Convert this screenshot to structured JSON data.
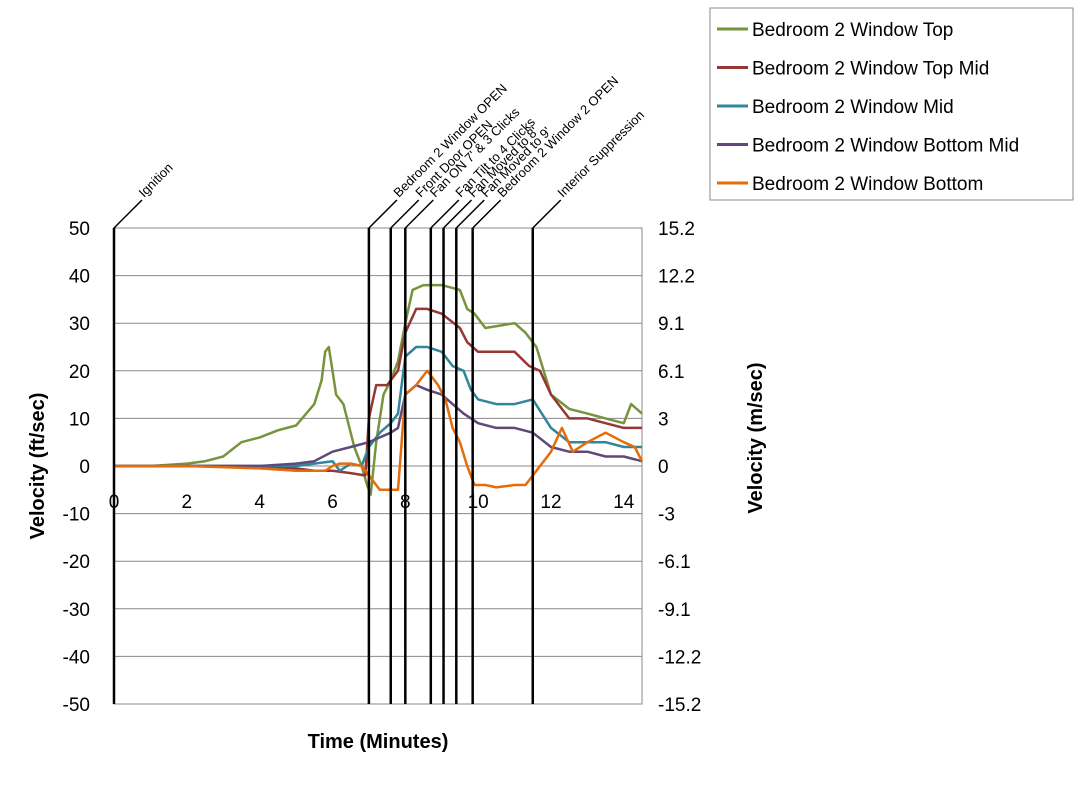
{
  "chart_data": {
    "type": "line",
    "xlabel": "Time (Minutes)",
    "ylabel": "Velocity (ft/sec)",
    "y2label": "Velocity (m/sec)",
    "xlim": [
      0,
      14.5
    ],
    "ylim": [
      -50,
      50
    ],
    "xticks": [
      0,
      2,
      4,
      6,
      8,
      10,
      12,
      14
    ],
    "yticks": [
      50,
      40,
      30,
      20,
      10,
      0,
      -10,
      -20,
      -30,
      -40,
      -50
    ],
    "y2ticks": [
      "15.2",
      "12.2",
      "9.1",
      "6.1",
      "3",
      "0",
      "-3",
      "-6.1",
      "-9.1",
      "-12.2",
      "-15.2"
    ],
    "grid": "horizontal",
    "legend_position": "top-right",
    "events": [
      {
        "time": 0,
        "label": "Ignition"
      },
      {
        "time": 7.0,
        "label": "Bedroom 2 Window OPEN"
      },
      {
        "time": 7.6,
        "label": "Front Door OPEN"
      },
      {
        "time": 8.0,
        "label": "Fan ON 7' & 3 Clicks"
      },
      {
        "time": 8.7,
        "label": "Fan Tilt to 4 Clicks"
      },
      {
        "time": 9.05,
        "label": "Fan Moved to 8'"
      },
      {
        "time": 9.4,
        "label": "Fan Moved to 9'"
      },
      {
        "time": 9.85,
        "label": "Bedroom 2 Window 2 OPEN"
      },
      {
        "time": 11.5,
        "label": "Interior Suppression"
      }
    ],
    "series": [
      {
        "name": "Bedroom 2 Window Top",
        "color": "#77933C",
        "x": [
          0,
          1,
          2,
          2.5,
          3,
          3.5,
          4,
          4.5,
          5,
          5.5,
          5.7,
          5.8,
          5.9,
          6.0,
          6.1,
          6.3,
          6.6,
          6.8,
          6.95,
          7.05,
          7.2,
          7.4,
          7.6,
          7.8,
          8.0,
          8.2,
          8.5,
          9.0,
          9.5,
          9.7,
          9.9,
          10.2,
          11.0,
          11.3,
          11.6,
          12.0,
          12.5,
          13.0,
          13.5,
          14.0,
          14.2,
          14.5
        ],
        "y": [
          0,
          0,
          0.5,
          1,
          2,
          5,
          6,
          7.5,
          8.5,
          13,
          18,
          24,
          25,
          20,
          15,
          13,
          4,
          0,
          -4,
          -6,
          5,
          15,
          18,
          22,
          30,
          37,
          38,
          38,
          37,
          33,
          32,
          29,
          30,
          28,
          25,
          15,
          12,
          11,
          10,
          9,
          13,
          11
        ]
      },
      {
        "name": "Bedroom 2 Window Top Mid",
        "color": "#953735",
        "x": [
          0,
          2,
          4,
          5,
          5.5,
          6,
          6.5,
          6.9,
          7.0,
          7.2,
          7.5,
          7.8,
          8.0,
          8.3,
          8.6,
          9.0,
          9.5,
          9.7,
          10.0,
          10.5,
          11.0,
          11.4,
          11.7,
          12.0,
          12.5,
          13.0,
          13.5,
          14.0,
          14.5
        ],
        "y": [
          0,
          0,
          0,
          -0.5,
          -1,
          -1,
          -1.5,
          -2,
          10,
          17,
          17,
          20,
          28,
          33,
          33,
          32,
          29,
          26,
          24,
          24,
          24,
          21,
          20,
          15,
          10,
          10,
          9,
          8,
          8
        ]
      },
      {
        "name": "Bedroom 2 Window Mid",
        "color": "#31859C",
        "x": [
          0,
          2,
          4,
          5,
          5.5,
          6,
          6.2,
          6.5,
          6.8,
          7.0,
          7.3,
          7.6,
          7.8,
          8.0,
          8.3,
          8.6,
          9.0,
          9.3,
          9.6,
          9.8,
          10.0,
          10.5,
          11.0,
          11.5,
          12.0,
          12.5,
          13.0,
          13.5,
          14.0,
          14.5
        ],
        "y": [
          0,
          0,
          0,
          0,
          0.5,
          1,
          -1,
          0.5,
          0,
          4,
          7,
          9,
          11,
          23,
          25,
          25,
          24,
          21,
          20,
          16,
          14,
          13,
          13,
          14,
          8,
          5,
          5,
          5,
          4,
          4
        ]
      },
      {
        "name": "Bedroom 2 Window Bottom Mid",
        "color": "#5F497A",
        "x": [
          0,
          2,
          4,
          5,
          5.5,
          6,
          6.5,
          7.0,
          7.3,
          7.6,
          7.8,
          8.0,
          8.3,
          8.6,
          9.0,
          9.3,
          9.6,
          10.0,
          10.5,
          11.0,
          11.5,
          12.0,
          12.5,
          13.0,
          13.5,
          14.0,
          14.5
        ],
        "y": [
          0,
          0,
          0,
          0.5,
          1,
          3,
          4,
          5,
          6,
          7,
          8,
          15,
          17,
          16,
          15,
          13,
          11,
          9,
          8,
          8,
          7,
          4,
          3,
          3,
          2,
          2,
          1
        ]
      },
      {
        "name": "Bedroom 2 Window Bottom",
        "color": "#E46C0A",
        "x": [
          0,
          2,
          4,
          5,
          5.5,
          5.8,
          6,
          6.2,
          6.5,
          6.8,
          7.0,
          7.3,
          7.6,
          7.8,
          8.0,
          8.3,
          8.6,
          8.9,
          9.1,
          9.3,
          9.5,
          9.7,
          9.9,
          10.2,
          10.5,
          11.0,
          11.3,
          11.5,
          11.8,
          12.0,
          12.3,
          12.6,
          13.0,
          13.5,
          14.0,
          14.3,
          14.5
        ],
        "y": [
          0,
          0,
          -0.5,
          -1,
          -1,
          -1,
          0,
          0.5,
          0.5,
          0,
          -2,
          -5,
          -5,
          -5,
          15,
          17,
          20,
          17,
          14,
          8,
          5,
          0,
          -4,
          -4,
          -4.5,
          -4,
          -4,
          -2,
          1,
          3,
          8,
          3,
          5,
          7,
          5,
          4,
          1
        ]
      }
    ]
  }
}
